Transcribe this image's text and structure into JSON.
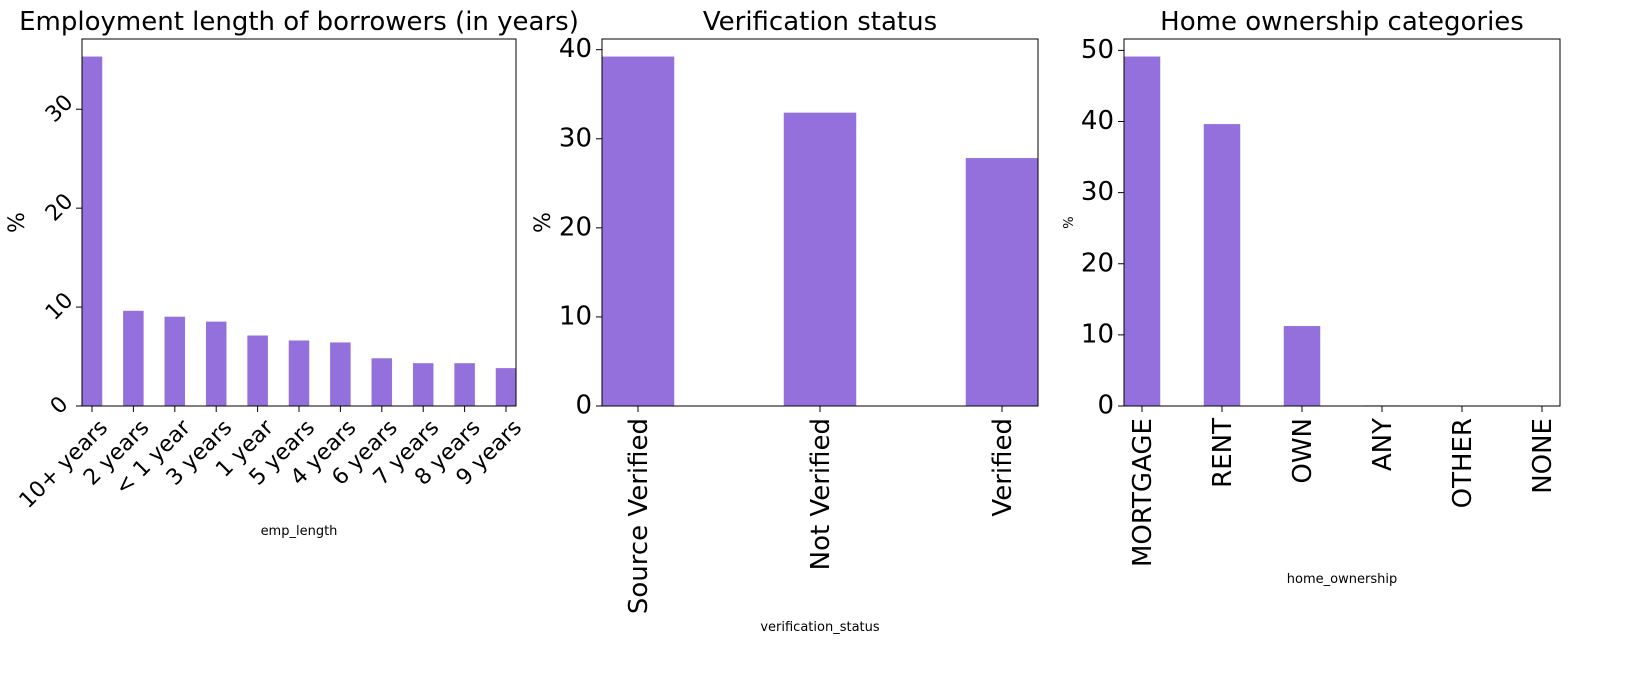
{
  "figure": {
    "bar_color": "#9370DB",
    "bar_edge": "#9370DB"
  },
  "chart_data": [
    {
      "type": "bar",
      "title": "Employment length of borrowers (in years)",
      "xlabel": "emp_length",
      "ylabel": "%",
      "categories": [
        "10+ years",
        "2 years",
        "< 1 year",
        "3 years",
        "1 year",
        "5 years",
        "4 years",
        "6 years",
        "7 years",
        "8 years",
        "9 years"
      ],
      "values": [
        35.3,
        9.6,
        9.0,
        8.5,
        7.1,
        6.6,
        6.4,
        4.8,
        4.3,
        4.3,
        3.8
      ],
      "ylim": [
        0,
        37.1
      ],
      "yticks": [
        0,
        10,
        20,
        30
      ],
      "ytick_rotation": 45,
      "xtick_rotation": 45,
      "grid": false
    },
    {
      "type": "bar",
      "title": "Verification status",
      "xlabel": "verification_status",
      "ylabel": "%",
      "categories": [
        "Source Verified",
        "Not Verified",
        "Verified"
      ],
      "values": [
        39.2,
        32.9,
        27.8
      ],
      "ylim": [
        0,
        41.2
      ],
      "yticks": [
        0,
        10,
        20,
        30,
        40
      ],
      "xtick_rotation": 90,
      "grid": false
    },
    {
      "type": "bar",
      "title": "Home ownership categories",
      "xlabel": "home_ownership",
      "ylabel": "%",
      "categories": [
        "MORTGAGE",
        "RENT",
        "OWN",
        "ANY",
        "OTHER",
        "NONE"
      ],
      "values": [
        49.1,
        39.6,
        11.2,
        0.05,
        0.02,
        0.01
      ],
      "ylim": [
        0,
        51.6
      ],
      "yticks": [
        0,
        10,
        20,
        30,
        40,
        50
      ],
      "xtick_rotation": 90,
      "grid": false
    }
  ]
}
